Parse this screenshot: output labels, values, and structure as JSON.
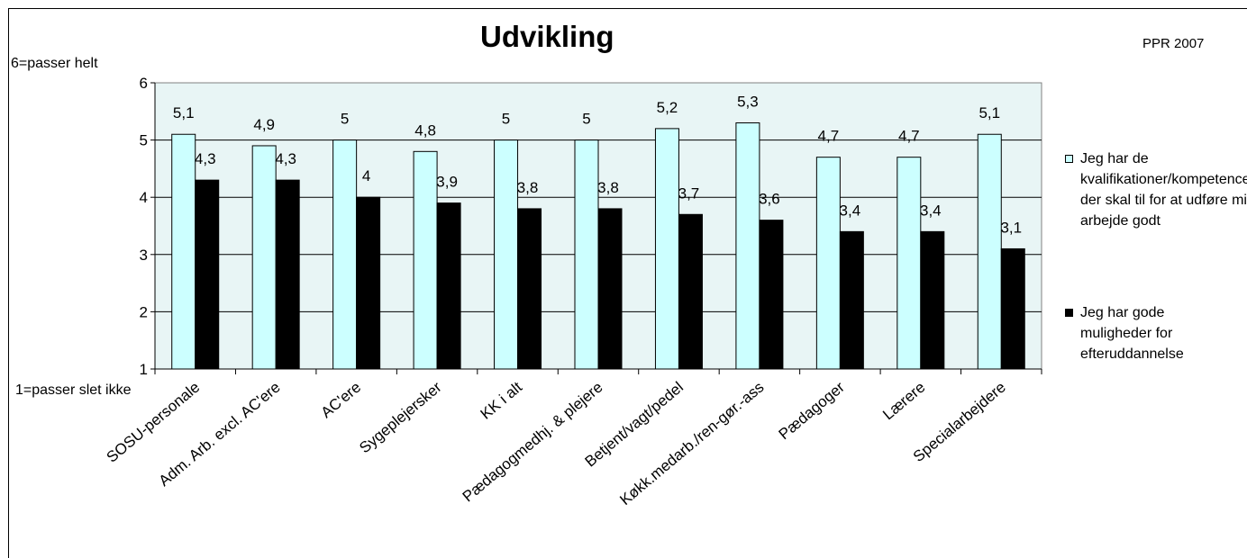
{
  "chart_data": {
    "type": "bar",
    "title": "Udvikling",
    "corner_label": "PPR 2007",
    "y_top_label": "6=passer helt",
    "y_bottom_label": "1=passer slet ikke",
    "xlabel": "",
    "ylabel": "",
    "ylim": [
      1,
      6
    ],
    "yticks": [
      1,
      2,
      3,
      4,
      5,
      6
    ],
    "grid": true,
    "legend_position": "right",
    "categories": [
      "SOSU-personale",
      "Adm. Arb. excl. AC'ere",
      "AC'ere",
      "Sygeplejersker",
      "KK i alt",
      "Pædagogmedhj. & plejere",
      "Betjent/vagt/pedel",
      "Køkk.medarb./ren-gør.-ass",
      "Pædagoger",
      "Lærere",
      "Specialarbejdere"
    ],
    "series": [
      {
        "name": "Jeg har de kvalifikationer/kompetencer, der skal til for at udføre mit arbejde godt",
        "color": "#ccffff",
        "values": [
          5.1,
          4.9,
          5,
          4.8,
          5,
          5,
          5.2,
          5.3,
          4.7,
          4.7,
          5.1
        ],
        "labels": [
          "5,1",
          "4,9",
          "5",
          "4,8",
          "5",
          "5",
          "5,2",
          "5,3",
          "4,7",
          "4,7",
          "5,1"
        ]
      },
      {
        "name": "Jeg har gode muligheder for efteruddannelse",
        "color": "#000000",
        "values": [
          4.3,
          4.3,
          4,
          3.9,
          3.8,
          3.8,
          3.7,
          3.6,
          3.4,
          3.4,
          3.1
        ],
        "labels": [
          "4,3",
          "4,3",
          "4",
          "3,9",
          "3,8",
          "3,8",
          "3,7",
          "3,6",
          "3,4",
          "3,4",
          "3,1"
        ]
      }
    ],
    "plot_bg": "#e8f5f5"
  }
}
